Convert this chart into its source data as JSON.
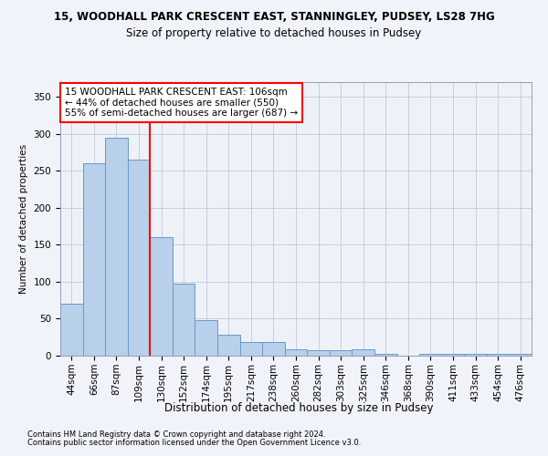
{
  "title1": "15, WOODHALL PARK CRESCENT EAST, STANNINGLEY, PUDSEY, LS28 7HG",
  "title2": "Size of property relative to detached houses in Pudsey",
  "xlabel": "Distribution of detached houses by size in Pudsey",
  "ylabel": "Number of detached properties",
  "categories": [
    "44sqm",
    "66sqm",
    "87sqm",
    "109sqm",
    "130sqm",
    "152sqm",
    "174sqm",
    "195sqm",
    "217sqm",
    "238sqm",
    "260sqm",
    "282sqm",
    "303sqm",
    "325sqm",
    "346sqm",
    "368sqm",
    "390sqm",
    "411sqm",
    "433sqm",
    "454sqm",
    "476sqm"
  ],
  "values": [
    70,
    260,
    295,
    265,
    160,
    98,
    48,
    28,
    18,
    18,
    9,
    7,
    7,
    9,
    3,
    0,
    3,
    3,
    3,
    3,
    3
  ],
  "bar_color": "#b8d0ea",
  "bar_edge_color": "#6699cc",
  "annotation_lines": [
    "15 WOODHALL PARK CRESCENT EAST: 106sqm",
    "← 44% of detached houses are smaller (550)",
    "55% of semi-detached houses are larger (687) →"
  ],
  "ylim": [
    0,
    370
  ],
  "yticks": [
    0,
    50,
    100,
    150,
    200,
    250,
    300,
    350
  ],
  "footer1": "Contains HM Land Registry data © Crown copyright and database right 2024.",
  "footer2": "Contains public sector information licensed under the Open Government Licence v3.0.",
  "bg_color": "#f0f4fa",
  "plot_bg_color": "#eef2f8",
  "grid_color": "#c0c8dd",
  "red_line_x": 3.5,
  "title1_fontsize": 8.5,
  "title2_fontsize": 8.5,
  "ylabel_fontsize": 7.5,
  "xlabel_fontsize": 8.5,
  "tick_fontsize": 7.5,
  "ann_fontsize": 7.5,
  "footer_fontsize": 6.0
}
